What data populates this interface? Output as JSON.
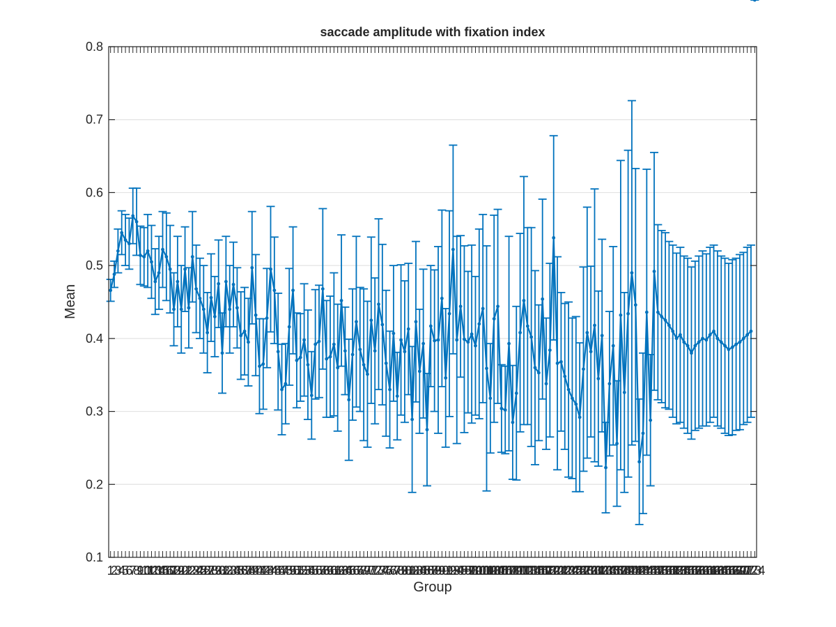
{
  "chart_data": {
    "type": "line",
    "title": "saccade amplitude with fixation index",
    "xlabel": "Group",
    "ylabel": "Mean",
    "xlim": [
      0.5,
      174.5
    ],
    "ylim": [
      0.1,
      0.8
    ],
    "yticks": [
      0.1,
      0.2,
      0.3,
      0.4,
      0.5,
      0.6,
      0.7,
      0.8
    ],
    "ytick_labels": [
      "0.1",
      "0.2",
      "0.3",
      "0.4",
      "0.5",
      "0.6",
      "0.7",
      "0.8"
    ],
    "grid": "y-major",
    "error_bars": true,
    "x": [
      1,
      2,
      3,
      4,
      5,
      6,
      7,
      8,
      9,
      10,
      11,
      12,
      13,
      14,
      15,
      16,
      17,
      18,
      19,
      20,
      21,
      22,
      23,
      24,
      25,
      26,
      27,
      28,
      29,
      30,
      31,
      32,
      33,
      34,
      35,
      36,
      37,
      38,
      39,
      40,
      41,
      42,
      43,
      44,
      45,
      46,
      47,
      48,
      49,
      50,
      51,
      52,
      53,
      54,
      55,
      56,
      57,
      58,
      59,
      60,
      61,
      62,
      63,
      64,
      65,
      66,
      67,
      68,
      69,
      70,
      71,
      72,
      73,
      74,
      75,
      76,
      77,
      78,
      79,
      80,
      81,
      82,
      83,
      84,
      85,
      86,
      87,
      88,
      89,
      90,
      91,
      92,
      93,
      94,
      95,
      96,
      97,
      98,
      99,
      100,
      101,
      102,
      103,
      104,
      105,
      106,
      107,
      108,
      109,
      110,
      111,
      112,
      113,
      114,
      115,
      116,
      117,
      118,
      119,
      120,
      121,
      122,
      123,
      124,
      125,
      126,
      127,
      128,
      129,
      130,
      131,
      132,
      133,
      134,
      135,
      136,
      137,
      138,
      139,
      140,
      141,
      142,
      143,
      144,
      145,
      146,
      147,
      148,
      149,
      150,
      151,
      152,
      153,
      154,
      155,
      156,
      157,
      158,
      159,
      160,
      161,
      162,
      163,
      164,
      165,
      166,
      167,
      168,
      169,
      170,
      171,
      172,
      173,
      174
    ],
    "series": [
      {
        "color": "#0072bd",
        "mean": [
          0.466,
          0.488,
          0.52,
          0.545,
          0.535,
          0.53,
          0.568,
          0.56,
          0.514,
          0.512,
          0.52,
          0.505,
          0.478,
          0.49,
          0.522,
          0.512,
          0.495,
          0.44,
          0.478,
          0.44,
          0.495,
          0.442,
          0.512,
          0.468,
          0.455,
          0.44,
          0.408,
          0.456,
          0.43,
          0.475,
          0.38,
          0.478,
          0.44,
          0.474,
          0.442,
          0.404,
          0.41,
          0.395,
          0.497,
          0.432,
          0.362,
          0.365,
          0.428,
          0.495,
          0.466,
          0.382,
          0.33,
          0.338,
          0.416,
          0.466,
          0.37,
          0.374,
          0.398,
          0.364,
          0.322,
          0.392,
          0.396,
          0.468,
          0.372,
          0.375,
          0.392,
          0.36,
          0.452,
          0.383,
          0.316,
          0.378,
          0.423,
          0.385,
          0.364,
          0.351,
          0.425,
          0.383,
          0.447,
          0.419,
          0.366,
          0.33,
          0.407,
          0.321,
          0.398,
          0.382,
          0.413,
          0.289,
          0.423,
          0.355,
          0.393,
          0.275,
          0.417,
          0.397,
          0.398,
          0.455,
          0.346,
          0.434,
          0.522,
          0.398,
          0.444,
          0.399,
          0.395,
          0.406,
          0.39,
          0.42,
          0.441,
          0.359,
          0.318,
          0.427,
          0.444,
          0.304,
          0.302,
          0.393,
          0.285,
          0.325,
          0.408,
          0.452,
          0.417,
          0.402,
          0.36,
          0.353,
          0.454,
          0.338,
          0.384,
          0.538,
          0.366,
          0.368,
          0.348,
          0.33,
          0.318,
          0.31,
          0.292,
          0.358,
          0.408,
          0.382,
          0.418,
          0.345,
          0.404,
          0.223,
          0.338,
          0.39,
          0.256,
          0.432,
          0.326,
          0.434,
          0.49,
          0.446,
          0.231,
          0.27,
          0.436,
          0.288,
          0.492,
          0.436,
          0.43,
          0.425,
          0.418,
          0.41,
          0.4,
          0.405,
          0.395,
          0.39,
          0.38,
          0.39,
          0.395,
          0.4,
          0.398,
          0.405,
          0.41,
          0.4,
          0.395,
          0.39,
          0.385,
          0.388,
          0.392,
          0.395,
          0.4,
          0.405,
          0.41
        ],
        "err": [
          0.015,
          0.018,
          0.03,
          0.03,
          0.035,
          0.035,
          0.038,
          0.046,
          0.04,
          0.04,
          0.05,
          0.05,
          0.045,
          0.05,
          0.052,
          0.06,
          0.06,
          0.05,
          0.062,
          0.06,
          0.058,
          0.055,
          0.062,
          0.06,
          0.055,
          0.06,
          0.055,
          0.06,
          0.055,
          0.06,
          0.055,
          0.062,
          0.06,
          0.058,
          0.055,
          0.06,
          0.06,
          0.06,
          0.077,
          0.083,
          0.065,
          0.062,
          0.068,
          0.086,
          0.073,
          0.08,
          0.062,
          0.055,
          0.08,
          0.087,
          0.065,
          0.06,
          0.077,
          0.075,
          0.06,
          0.075,
          0.077,
          0.11,
          0.08,
          0.083,
          0.098,
          0.087,
          0.09,
          0.06,
          0.083,
          0.09,
          0.117,
          0.085,
          0.104,
          0.1,
          0.114,
          0.1,
          0.117,
          0.11,
          0.1,
          0.08,
          0.093,
          0.06,
          0.103,
          0.097,
          0.09,
          0.1,
          0.11,
          0.085,
          0.102,
          0.077,
          0.083,
          0.097,
          0.128,
          0.121,
          0.095,
          0.141,
          0.143,
          0.142,
          0.097,
          0.128,
          0.097,
          0.122,
          0.095,
          0.13,
          0.129,
          0.168,
          0.075,
          0.142,
          0.133,
          0.06,
          0.06,
          0.147,
          0.078,
          0.119,
          0.136,
          0.17,
          0.135,
          0.15,
          0.133,
          0.093,
          0.137,
          0.09,
          0.119,
          0.14,
          0.146,
          0.095,
          0.1,
          0.12,
          0.11,
          0.12,
          0.102,
          0.14,
          0.172,
          0.117,
          0.187,
          0.12,
          0.132,
          0.062,
          0.099,
          0.136,
          0.086,
          0.212,
          0.137,
          0.224,
          0.236,
          0.187,
          0.086,
          0.11,
          0.196,
          0.09,
          0.163,
          0.12,
          0.118,
          0.12,
          0.115,
          0.118,
          0.117,
          0.12,
          0.118,
          0.12,
          0.118,
          0.116,
          0.118,
          0.12,
          0.118,
          0.12,
          0.118,
          0.12,
          0.118,
          0.12,
          0.118,
          0.12,
          0.118,
          0.12,
          0.118,
          0.12,
          0.118
        ]
      }
    ]
  }
}
